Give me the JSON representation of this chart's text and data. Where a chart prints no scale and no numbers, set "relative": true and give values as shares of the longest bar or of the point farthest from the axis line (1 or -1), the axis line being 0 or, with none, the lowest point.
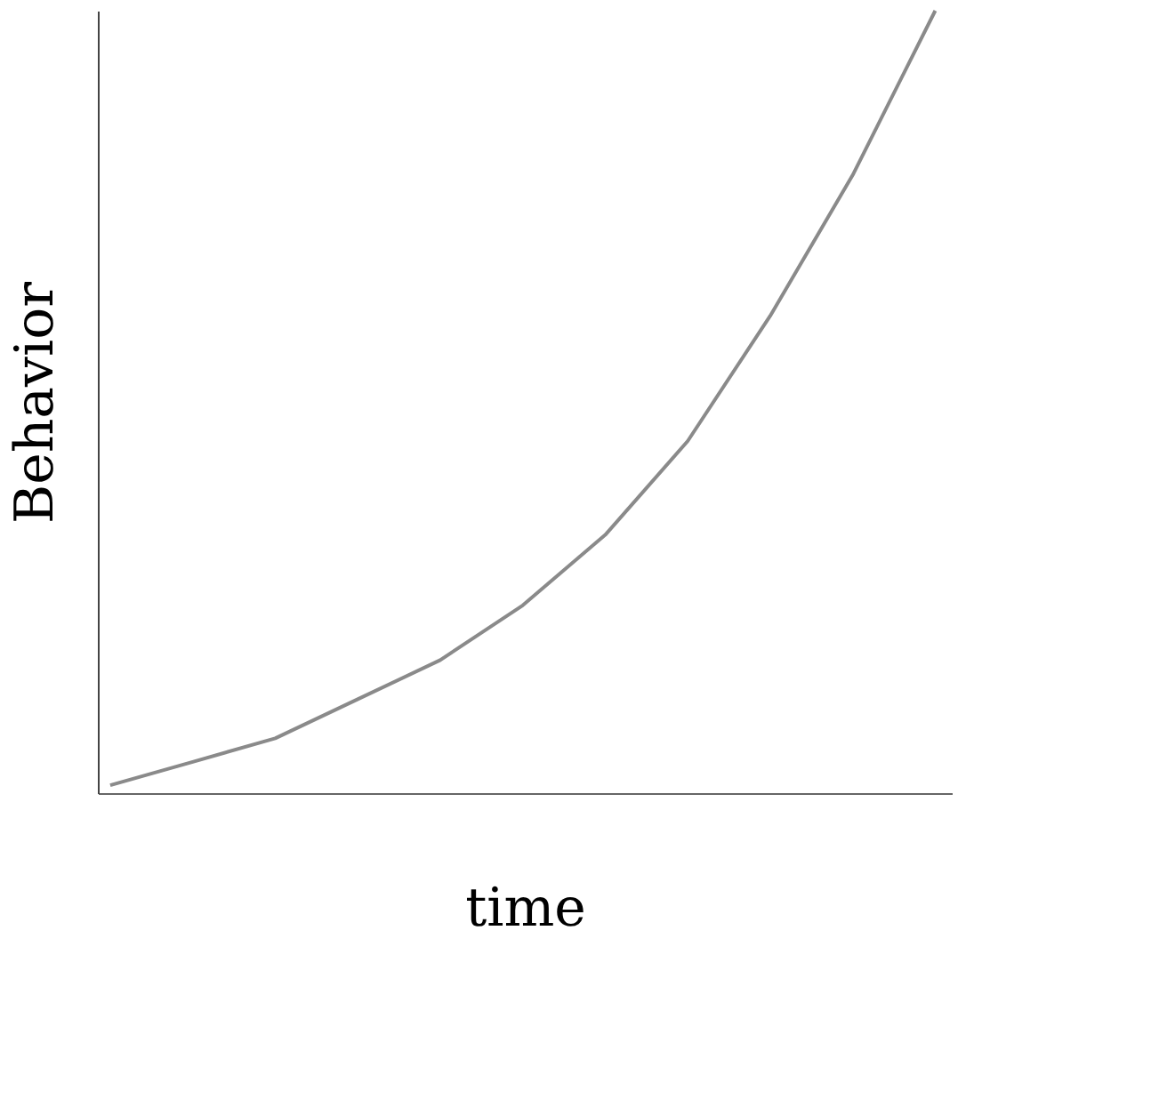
{
  "chart_data": {
    "type": "line",
    "relative": true,
    "xlabel": "time",
    "ylabel": "Behavior",
    "categories": [
      null,
      null,
      null,
      null,
      null,
      null,
      null,
      null,
      null,
      null,
      null
    ],
    "series": [
      {
        "color": "#8a8a8a",
        "values": [
          0.01,
          0.04,
          0.07,
          0.12,
          0.17,
          0.24,
          0.33,
          0.45,
          0.61,
          0.79,
          1.0
        ]
      }
    ],
    "grid": false,
    "legend": false
  }
}
